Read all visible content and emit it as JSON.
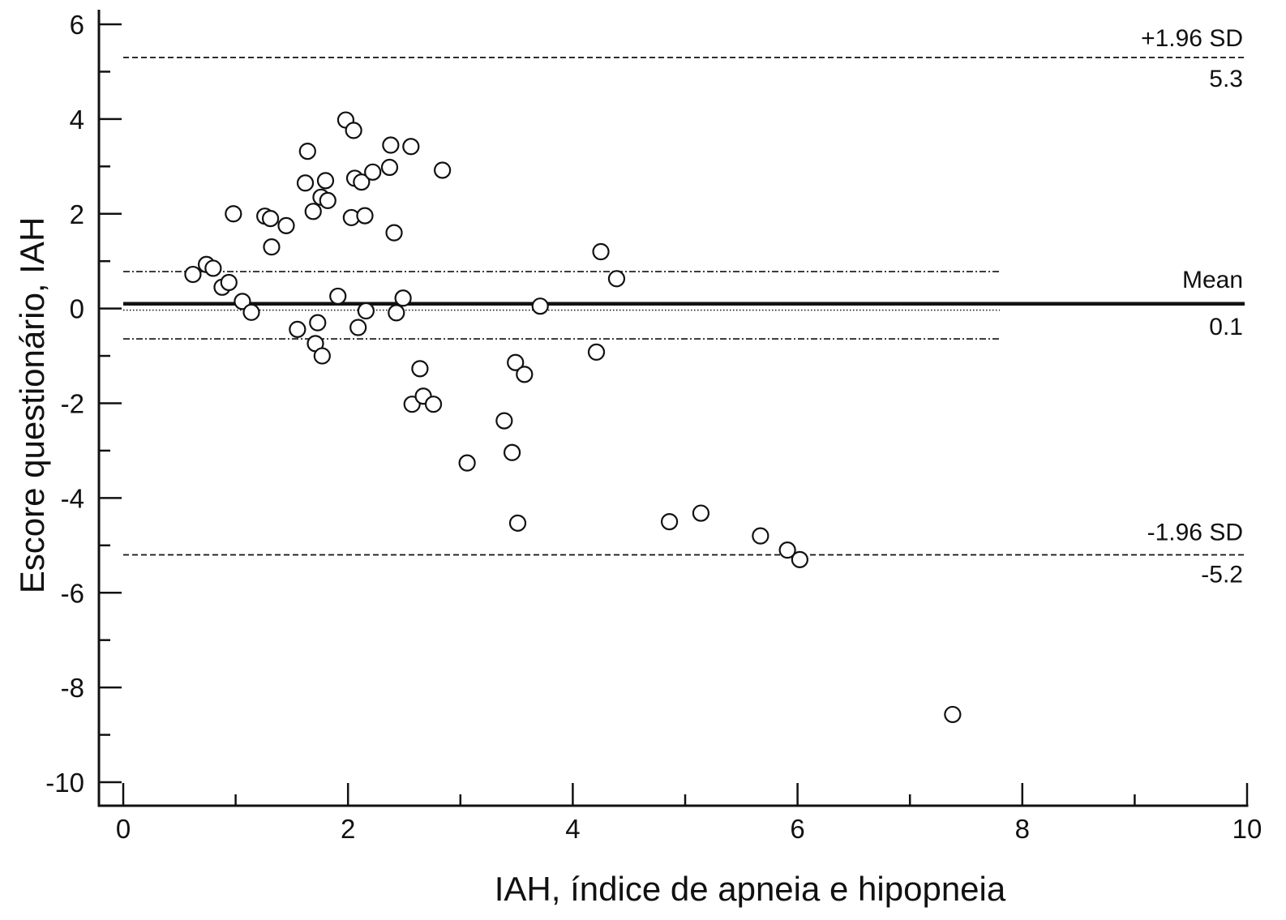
{
  "chart_data": {
    "type": "scatter",
    "xlabel": "IAH, índice de apneia e hipopneia",
    "ylabel": "Escore questionário, IAH",
    "xlim": [
      0,
      10
    ],
    "ylim": [
      -10.5,
      6.3
    ],
    "x_ticks": [
      0,
      2,
      4,
      6,
      8,
      10
    ],
    "x_tick_labels": [
      "0",
      "2",
      "4",
      "6",
      "8",
      "10"
    ],
    "x_minor_step": 1,
    "y_ticks": [
      6,
      4,
      2,
      0,
      -2,
      -4,
      -6,
      -8,
      -10
    ],
    "y_tick_labels": [
      "6",
      "4",
      "2",
      "0",
      "-2",
      "-4",
      "-6",
      "-8",
      "-10"
    ],
    "y_minor_step": 1,
    "grid": false,
    "reference_lines": {
      "upper": {
        "label": "+1.96 SD",
        "value_label": "5.3",
        "y": 5.3,
        "style": "dashed"
      },
      "mean": {
        "label": "Mean",
        "value_label": "0.1",
        "y": 0.1,
        "style": "solid"
      },
      "upper_ci_mean": {
        "y": 0.78,
        "style": "dashdot",
        "x_end": 7.8
      },
      "lower_ci_mean": {
        "y": -0.64,
        "style": "dashdot",
        "x_end": 7.8
      },
      "zero": {
        "y": 0,
        "style": "dotted",
        "x_end": 7.8
      },
      "lower": {
        "label": "-1.96 SD",
        "value_label": "-5.2",
        "y": -5.2,
        "style": "dashed"
      }
    },
    "points": [
      {
        "x": 0.62,
        "y": 0.72
      },
      {
        "x": 0.74,
        "y": 0.93
      },
      {
        "x": 0.8,
        "y": 0.85
      },
      {
        "x": 0.88,
        "y": 0.45
      },
      {
        "x": 0.94,
        "y": 0.55
      },
      {
        "x": 0.98,
        "y": 2.0
      },
      {
        "x": 1.06,
        "y": 0.15
      },
      {
        "x": 1.14,
        "y": -0.08
      },
      {
        "x": 1.26,
        "y": 1.95
      },
      {
        "x": 1.31,
        "y": 1.9
      },
      {
        "x": 1.32,
        "y": 1.3
      },
      {
        "x": 1.45,
        "y": 1.75
      },
      {
        "x": 1.55,
        "y": -0.44
      },
      {
        "x": 1.62,
        "y": 2.65
      },
      {
        "x": 1.64,
        "y": 3.32
      },
      {
        "x": 1.69,
        "y": 2.05
      },
      {
        "x": 1.71,
        "y": -0.74
      },
      {
        "x": 1.73,
        "y": -0.3
      },
      {
        "x": 1.76,
        "y": 2.35
      },
      {
        "x": 1.77,
        "y": -1.0
      },
      {
        "x": 1.8,
        "y": 2.7
      },
      {
        "x": 1.82,
        "y": 2.28
      },
      {
        "x": 1.91,
        "y": 0.26
      },
      {
        "x": 1.98,
        "y": 3.98
      },
      {
        "x": 2.03,
        "y": 1.92
      },
      {
        "x": 2.05,
        "y": 3.76
      },
      {
        "x": 2.06,
        "y": 2.75
      },
      {
        "x": 2.09,
        "y": -0.4
      },
      {
        "x": 2.12,
        "y": 2.67
      },
      {
        "x": 2.15,
        "y": 1.96
      },
      {
        "x": 2.16,
        "y": -0.05
      },
      {
        "x": 2.22,
        "y": 2.88
      },
      {
        "x": 2.37,
        "y": 2.98
      },
      {
        "x": 2.38,
        "y": 3.45
      },
      {
        "x": 2.41,
        "y": 1.6
      },
      {
        "x": 2.43,
        "y": -0.09
      },
      {
        "x": 2.49,
        "y": 0.22
      },
      {
        "x": 2.56,
        "y": 3.42
      },
      {
        "x": 2.57,
        "y": -2.02
      },
      {
        "x": 2.64,
        "y": -1.27
      },
      {
        "x": 2.67,
        "y": -1.85
      },
      {
        "x": 2.76,
        "y": -2.02
      },
      {
        "x": 2.84,
        "y": 2.92
      },
      {
        "x": 3.06,
        "y": -3.26
      },
      {
        "x": 3.39,
        "y": -2.37
      },
      {
        "x": 3.46,
        "y": -3.04
      },
      {
        "x": 3.49,
        "y": -1.14
      },
      {
        "x": 3.51,
        "y": -4.53
      },
      {
        "x": 3.57,
        "y": -1.39
      },
      {
        "x": 3.71,
        "y": 0.05
      },
      {
        "x": 4.21,
        "y": -0.92
      },
      {
        "x": 4.25,
        "y": 1.2
      },
      {
        "x": 4.39,
        "y": 0.63
      },
      {
        "x": 4.86,
        "y": -4.5
      },
      {
        "x": 5.14,
        "y": -4.32
      },
      {
        "x": 5.67,
        "y": -4.8
      },
      {
        "x": 5.91,
        "y": -5.1
      },
      {
        "x": 6.02,
        "y": -5.3
      },
      {
        "x": 7.38,
        "y": -8.57
      }
    ]
  }
}
